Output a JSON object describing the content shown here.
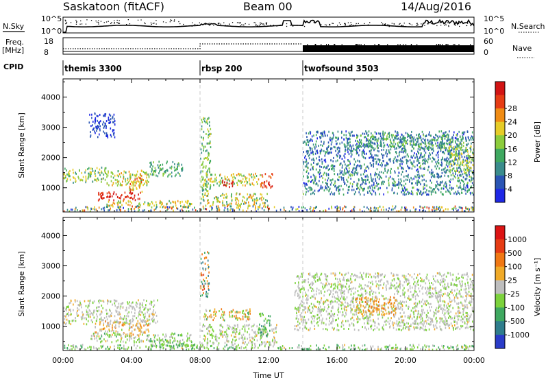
{
  "header": {
    "station": "Saskatoon (fitACF)",
    "beam": "Beam 00",
    "date": "14/Aug/2016"
  },
  "strip_labels": {
    "nsky": "N.Sky",
    "nsearch": "N.Search",
    "freq_line1": "Freq.",
    "freq_line2": "[MHz]",
    "nave": "Nave",
    "cpid": "CPID"
  },
  "strip_ticks": {
    "nsky_left": [
      "10^5",
      "10^0"
    ],
    "nsky_right": [
      "10^5",
      "10^0"
    ],
    "freq_left": [
      "18",
      "8"
    ],
    "nave_right": [
      "60",
      "0"
    ]
  },
  "cpid_segments": [
    {
      "name": "themis 3300",
      "start_hour": 0
    },
    {
      "name": "rbsp 200",
      "start_hour": 8
    },
    {
      "name": "twofsound 3503",
      "start_hour": 14
    }
  ],
  "chart_data": [
    {
      "type": "heatmap",
      "name": "power",
      "xlabel": "",
      "ylabel": "Slant Range [km]",
      "xlim": [
        0,
        24
      ],
      "ylim": [
        200,
        4600
      ],
      "yticks": [
        "1000",
        "2000",
        "3000",
        "4000"
      ],
      "colorbar": {
        "label": "Power [dB]",
        "ticks": [
          "4",
          "8",
          "12",
          "16",
          "20",
          "24",
          "28"
        ],
        "colors": [
          "#1e28e6",
          "#2a55b4",
          "#3a8c8c",
          "#3fa860",
          "#8ccc3c",
          "#e6cc28",
          "#f08c14",
          "#e63c14",
          "#d21414"
        ]
      }
    },
    {
      "type": "heatmap",
      "name": "velocity",
      "xlabel": "Time UT",
      "ylabel": "Slant Range [km]",
      "xlim": [
        0,
        24
      ],
      "ylim": [
        200,
        4600
      ],
      "xticks": [
        "00:00",
        "04:00",
        "08:00",
        "12:00",
        "16:00",
        "20:00",
        "00:00"
      ],
      "yticks": [
        "1000",
        "2000",
        "3000",
        "4000"
      ],
      "colorbar": {
        "label": "Velocity [m s⁻¹]",
        "ticks": [
          "1000",
          "500",
          "100",
          "25",
          "-25",
          "-100",
          "-500",
          "-1000"
        ],
        "colors": [
          "#2a3cc8",
          "#2f7d8c",
          "#3fa860",
          "#7cd23c",
          "#bebebe",
          "#f0aa28",
          "#f07814",
          "#e63c14",
          "#dc1414"
        ]
      }
    }
  ]
}
